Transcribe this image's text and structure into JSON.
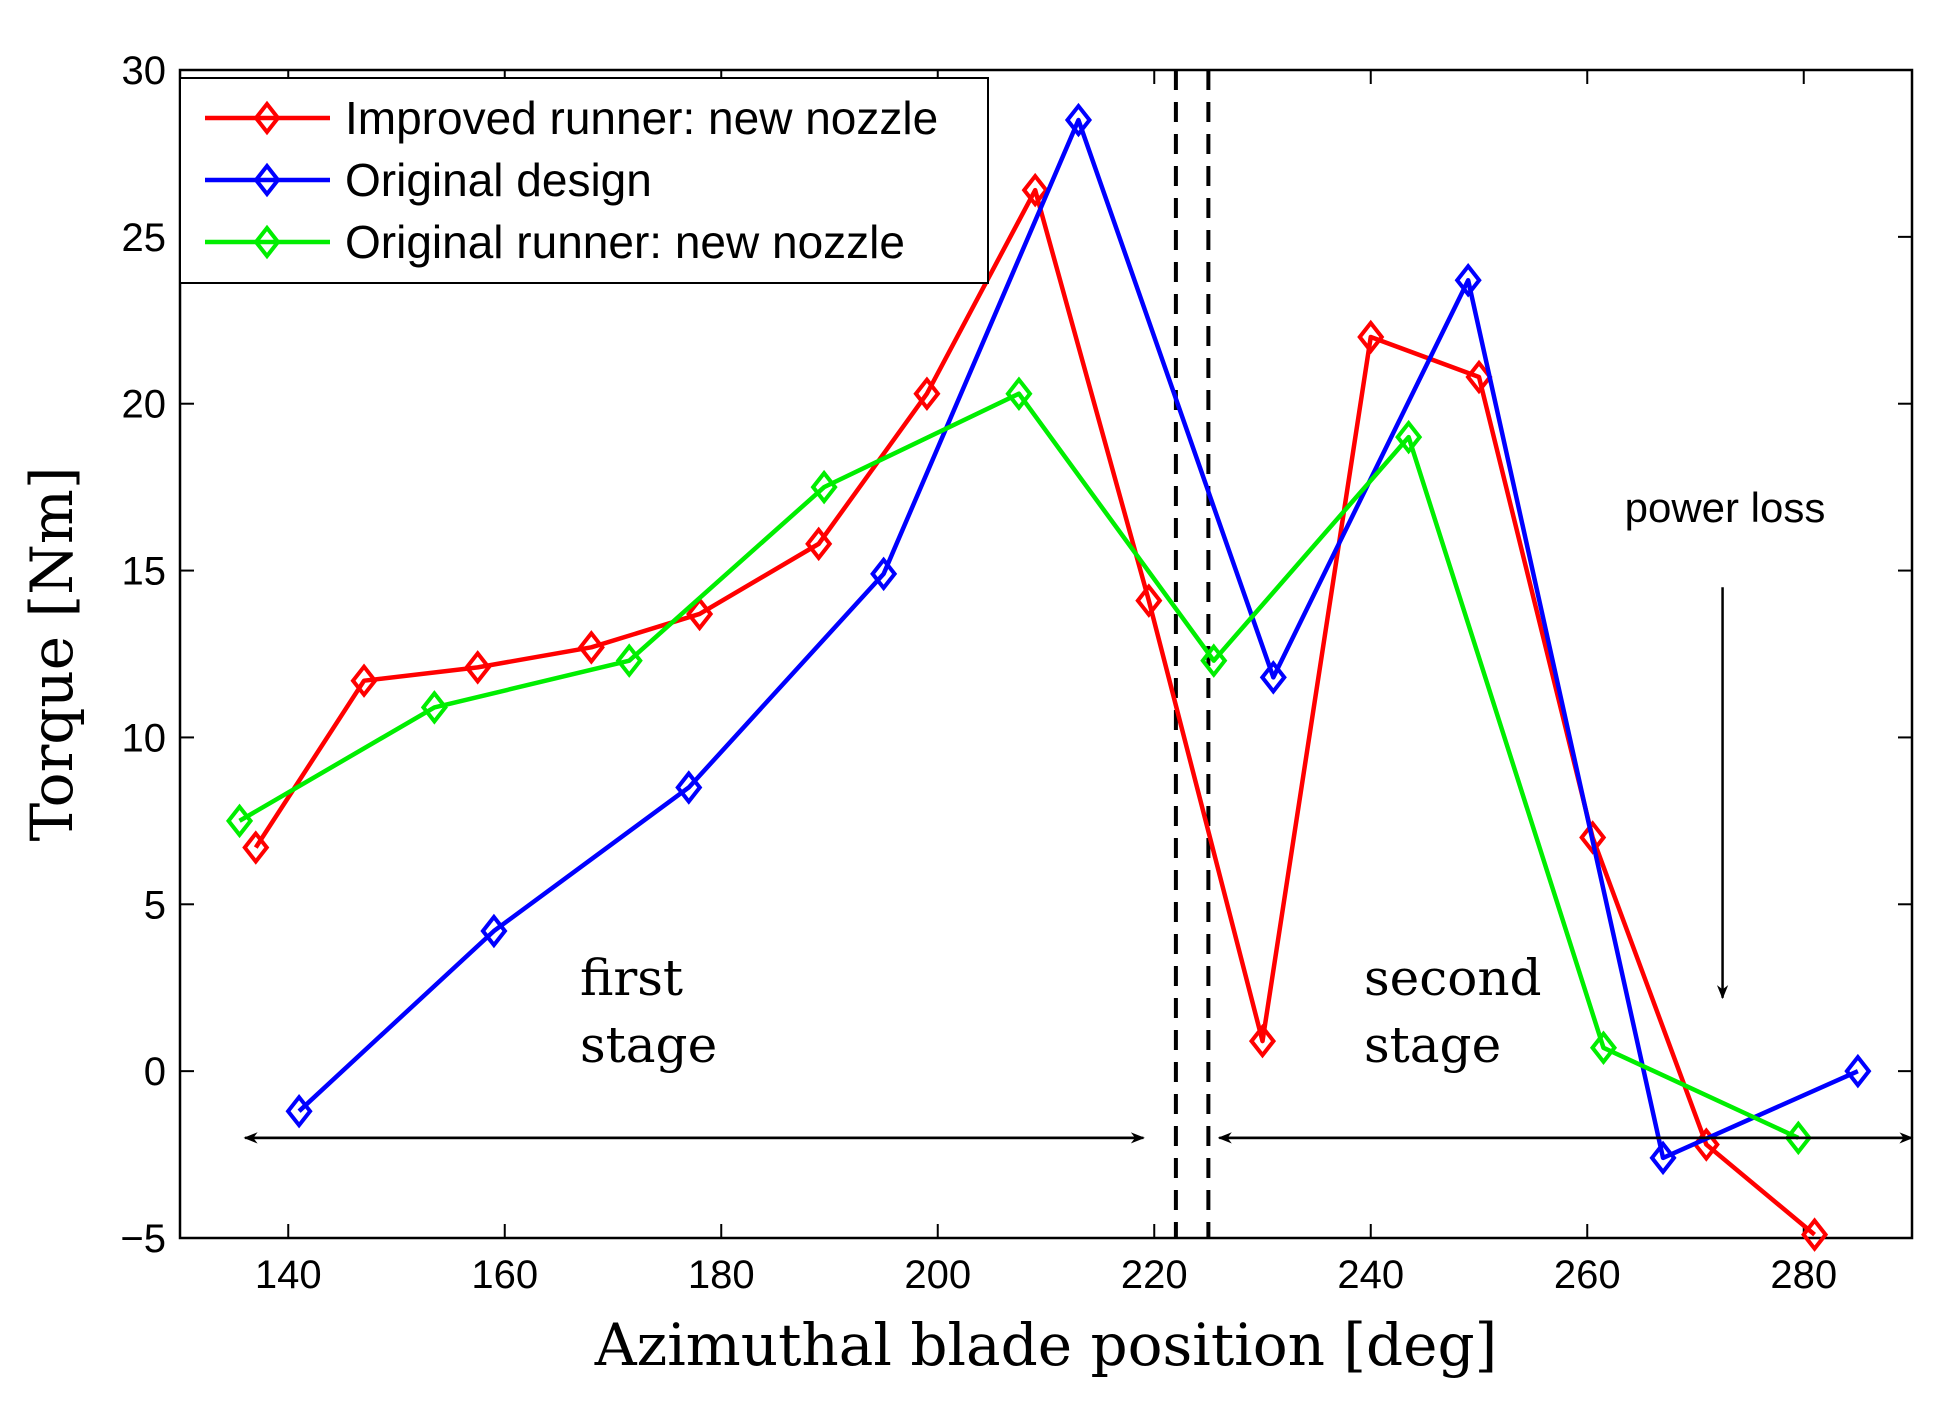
{
  "chart_data": {
    "type": "line",
    "title": "",
    "xlabel": "Azimuthal blade position [deg]",
    "ylabel": "Torque [Nm]",
    "xlim": [
      130,
      290
    ],
    "ylim": [
      -5,
      30
    ],
    "xticks": [
      140,
      160,
      180,
      200,
      220,
      240,
      260,
      280
    ],
    "yticks": [
      -5,
      0,
      5,
      10,
      15,
      20,
      25,
      30
    ],
    "xtick_labels": [
      "140",
      "160",
      "180",
      "200",
      "220",
      "240",
      "260",
      "280"
    ],
    "ytick_labels": [
      "−5",
      "0",
      "5",
      "10",
      "15",
      "20",
      "25",
      "30"
    ],
    "grid": false,
    "legend_position": "top-left",
    "series": [
      {
        "name": "Improved runner: new nozzle",
        "color": "#ff0000",
        "marker": "diamond",
        "x": [
          137,
          147,
          157.5,
          168,
          178,
          189,
          199,
          209,
          219.5,
          230,
          240,
          250,
          260.5,
          271,
          281
        ],
        "y": [
          6.7,
          11.7,
          12.1,
          12.7,
          13.7,
          15.8,
          20.3,
          26.4,
          14.1,
          0.9,
          22.0,
          20.8,
          7.0,
          -2.2,
          -4.9
        ]
      },
      {
        "name": "Original design",
        "color": "#0000ff",
        "marker": "diamond",
        "x": [
          141,
          159,
          177,
          195,
          213,
          231,
          249,
          267,
          285
        ],
        "y": [
          -1.2,
          4.2,
          8.5,
          14.9,
          28.5,
          11.8,
          23.7,
          -2.6,
          0.0
        ]
      },
      {
        "name": "Original runner: new nozzle",
        "color": "#00ee00",
        "marker": "diamond",
        "x": [
          135.5,
          153.5,
          171.5,
          189.5,
          207.5,
          225.5,
          243.5,
          261.5,
          279.5
        ],
        "y": [
          7.5,
          10.9,
          12.3,
          17.5,
          20.3,
          12.3,
          19.0,
          0.7,
          -2.0
        ]
      }
    ],
    "vlines": [
      222,
      225
    ],
    "annotations": {
      "first_stage": {
        "line1": "first",
        "line2": "stage",
        "arrow_from": 136,
        "arrow_to": 219,
        "y": -2
      },
      "second_stage": {
        "line1": "second",
        "line2": "stage",
        "arrow_from": 226,
        "arrow_to": 290,
        "y": -2
      },
      "power_loss": {
        "label": "power loss",
        "arrow_x": 272.5,
        "arrow_from_y": 14.5,
        "arrow_to_y": 2.2
      }
    }
  }
}
